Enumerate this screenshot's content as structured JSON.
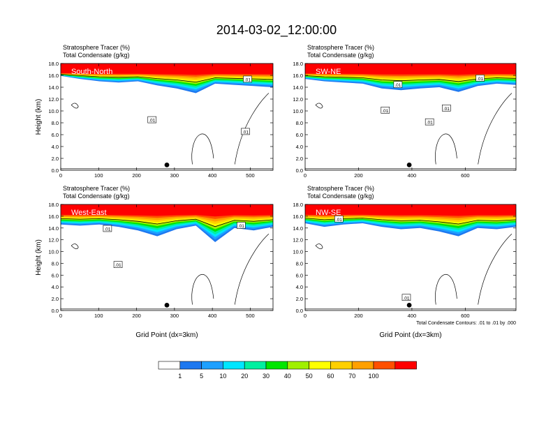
{
  "title": "2014-03-02_12:00:00",
  "colors": {
    "bins": [
      "#ffffff",
      "#1e78f0",
      "#1ea0ff",
      "#00e6ff",
      "#00f0a0",
      "#00e600",
      "#a0f000",
      "#ffff00",
      "#ffd000",
      "#ffa000",
      "#ff5000",
      "#ff0000"
    ]
  },
  "chart_data": [
    {
      "type": "heatmap",
      "panel_label": "South-North",
      "header": [
        "Stratosphere Tracer   (%)",
        "Total Condensate   (g/kg)"
      ],
      "ylabel": "Height (km)",
      "xlabel": "",
      "xlim": [
        0,
        560
      ],
      "ylim": [
        0,
        18
      ],
      "xticks": [
        "0",
        "100",
        "200",
        "300",
        "400",
        "500"
      ],
      "xtick_values": [
        0,
        100,
        200,
        300,
        400,
        500
      ],
      "yticks": [
        "0.0",
        "2.0",
        "4.0",
        "6.0",
        "8.0",
        "10.0",
        "12.0",
        "14.0",
        "16.0",
        "18.0"
      ],
      "contour_labels": [
        ".01",
        ".01",
        ".01"
      ],
      "marker_x": 280,
      "tracer_base_km": [
        15.9,
        15.4,
        15.0,
        14.8,
        15.0,
        14.3,
        13.8,
        13.0,
        14.6,
        14.4,
        14.2,
        14.0
      ],
      "tracer_top_km": 16.4
    },
    {
      "type": "heatmap",
      "panel_label": "SW-NE",
      "header": [
        "Stratosphere Tracer   (%)",
        "Total Condensate   (g/kg)"
      ],
      "ylabel": "",
      "xlabel": "",
      "xlim": [
        0,
        790
      ],
      "ylim": [
        0,
        18
      ],
      "xticks": [
        "0",
        "200",
        "400",
        "600"
      ],
      "xtick_values": [
        0,
        200,
        400,
        600
      ],
      "yticks": [
        "0.0",
        "2.0",
        "4.0",
        "6.0",
        "8.0",
        "10.0",
        "12.0",
        "14.0",
        "16.0",
        "18.0"
      ],
      "contour_labels": [
        ".01",
        ".01",
        ".01",
        ".01",
        ".01"
      ],
      "marker_x": 390,
      "tracer_base_km": [
        15.4,
        15.0,
        14.8,
        14.6,
        13.8,
        13.5,
        13.8,
        14.0,
        13.2,
        14.2,
        14.6,
        14.4
      ],
      "tracer_top_km": 16.4
    },
    {
      "type": "heatmap",
      "panel_label": "West-East",
      "header": [
        "Stratosphere Tracer   (%)",
        "Total Condensate   (g/kg)"
      ],
      "ylabel": "Height (km)",
      "xlabel": "Grid Point (dx=3km)",
      "xlim": [
        0,
        560
      ],
      "ylim": [
        0,
        18
      ],
      "xticks": [
        "0",
        "100",
        "200",
        "300",
        "400",
        "500"
      ],
      "xtick_values": [
        0,
        100,
        200,
        300,
        400,
        500
      ],
      "yticks": [
        "0.0",
        "2.0",
        "4.0",
        "6.0",
        "8.0",
        "10.0",
        "12.0",
        "14.0",
        "16.0",
        "18.0"
      ],
      "contour_labels": [
        ".01",
        ".01",
        ".01"
      ],
      "marker_x": 280,
      "tracer_base_km": [
        14.6,
        14.4,
        14.6,
        14.2,
        13.6,
        12.6,
        13.8,
        14.4,
        11.6,
        14.0,
        13.6,
        14.2
      ],
      "tracer_top_km": 16.4
    },
    {
      "type": "heatmap",
      "panel_label": "NW-SE",
      "header": [
        "Stratosphere Tracer   (%)",
        "Total Condensate   (g/kg)"
      ],
      "ylabel": "",
      "xlabel": "Grid Point (dx=3km)",
      "xlim": [
        0,
        790
      ],
      "ylim": [
        0,
        18
      ],
      "xticks": [
        "0",
        "200",
        "400",
        "600"
      ],
      "xtick_values": [
        0,
        200,
        400,
        600
      ],
      "yticks": [
        "0.0",
        "2.0",
        "4.0",
        "6.0",
        "8.0",
        "10.0",
        "12.0",
        "14.0",
        "16.0",
        "18.0"
      ],
      "contour_labels": [
        ".01",
        ".01"
      ],
      "contour_note": "Total Condensate Contours: .01 to .01 by .000",
      "marker_x": 390,
      "tracer_base_km": [
        14.8,
        14.2,
        14.6,
        14.8,
        14.2,
        13.8,
        14.0,
        13.4,
        12.6,
        14.0,
        13.8,
        14.2
      ],
      "tracer_top_km": 16.4
    }
  ],
  "colorbar": {
    "labels": [
      "1",
      "5",
      "10",
      "20",
      "30",
      "40",
      "50",
      "60",
      "70",
      "100"
    ]
  }
}
